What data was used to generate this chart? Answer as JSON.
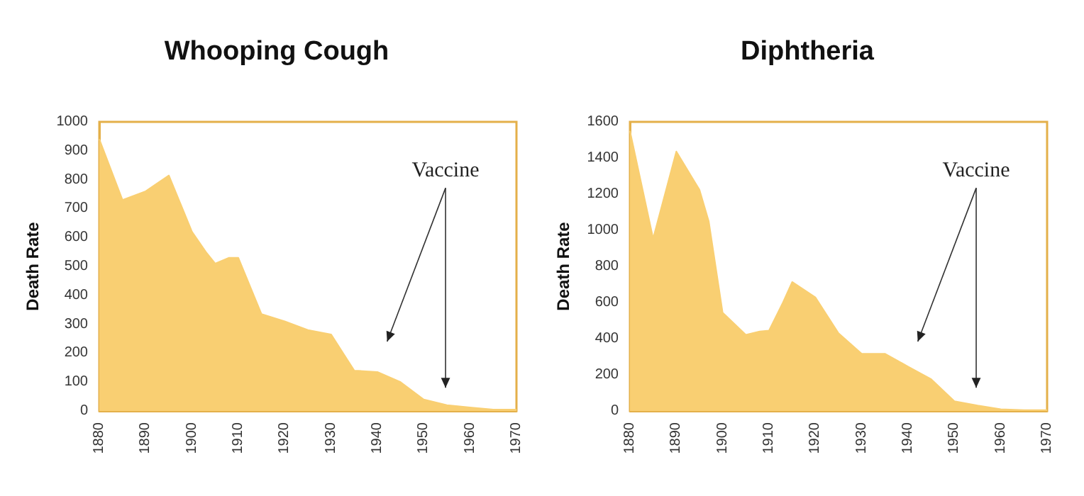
{
  "chart_data": [
    {
      "type": "area",
      "title": "Whooping Cough",
      "ylabel": "Death Rate",
      "x": [
        1880,
        1885,
        1890,
        1895,
        1900,
        1903,
        1905,
        1908,
        1910,
        1915,
        1920,
        1925,
        1930,
        1935,
        1940,
        1945,
        1950,
        1955,
        1960,
        1965,
        1970
      ],
      "series": [
        {
          "color": "#f9cf72",
          "values": [
            940,
            730,
            760,
            815,
            620,
            550,
            510,
            530,
            530,
            335,
            310,
            280,
            265,
            140,
            135,
            100,
            40,
            20,
            12,
            5,
            5
          ]
        }
      ],
      "xlim": [
        1880,
        1970
      ],
      "xticks": [
        1880,
        1890,
        1900,
        1910,
        1920,
        1930,
        1940,
        1950,
        1960,
        1970
      ],
      "ylim": [
        0,
        1000
      ],
      "yticks": [
        0,
        100,
        200,
        300,
        400,
        500,
        600,
        700,
        800,
        900,
        1000
      ],
      "grid": false,
      "annotations": [
        "Vaccine"
      ]
    },
    {
      "type": "area",
      "title": "Diphtheria",
      "ylabel": "Death Rate",
      "x": [
        1880,
        1885,
        1890,
        1895,
        1897,
        1900,
        1905,
        1908,
        1910,
        1913,
        1915,
        1920,
        1925,
        1930,
        1935,
        1940,
        1945,
        1950,
        1955,
        1960,
        1965,
        1970
      ],
      "series": [
        {
          "color": "#f9cf72",
          "values": [
            1550,
            955,
            1436,
            1224,
            1050,
            544,
            422,
            440,
            445,
            600,
            714,
            629,
            430,
            317,
            317,
            246,
            176,
            54,
            30,
            10,
            5,
            5
          ]
        }
      ],
      "xlim": [
        1880,
        1970
      ],
      "xticks": [
        1880,
        1890,
        1900,
        1910,
        1920,
        1930,
        1940,
        1950,
        1960,
        1970
      ],
      "ylim": [
        0,
        1600
      ],
      "yticks": [
        0,
        200,
        400,
        600,
        800,
        1000,
        1200,
        1400,
        1600
      ],
      "grid": false,
      "annotations": [
        "Vaccine"
      ]
    }
  ]
}
